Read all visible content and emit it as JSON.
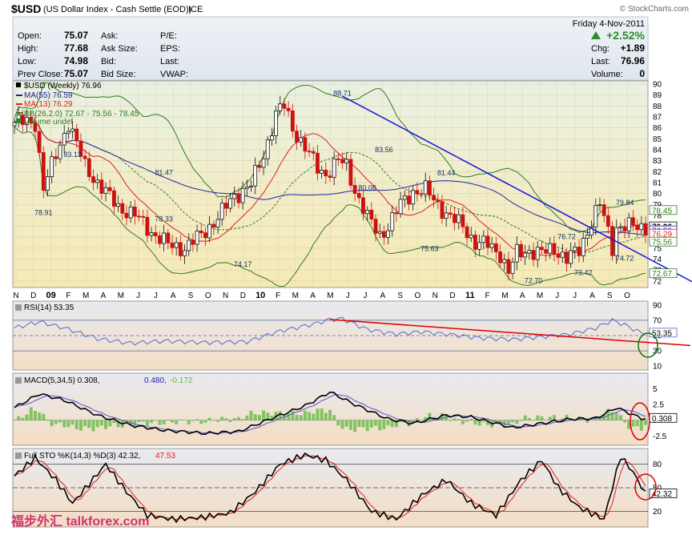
{
  "header": {
    "symbol": "$USD",
    "description": "(US Dollar Index - Cash Settle (EOD))",
    "exchange": "ICE",
    "brand": "© StockCharts.com",
    "date": "Friday 4-Nov-2011",
    "pct_change": "+2.52%",
    "watermark": "福步外汇 talkforex.com"
  },
  "quote": {
    "open_label": "Open:",
    "open": "75.07",
    "high_label": "High:",
    "high": "77.68",
    "low_label": "Low:",
    "low": "74.98",
    "prev_label": "Prev Close:",
    "prev": "75.07",
    "ask_label": "Ask:",
    "ask": "",
    "asksize_label": "Ask Size:",
    "asksize": "",
    "bid_label": "Bid:",
    "bid": "",
    "bidsize_label": "Bid Size:",
    "bidsize": "",
    "pe_label": "P/E:",
    "eps_label": "EPS:",
    "last_label": "Last:",
    "vwap_label": "VWAP:",
    "chg_label": "Chg:",
    "chg": "+1.89",
    "last2_label": "Last:",
    "last2": "76.96",
    "volume_label": "Volume:",
    "volume": "0"
  },
  "legend": {
    "main": "$USD (Weekly) 76.96",
    "ma55": "MA(55) 76.59",
    "ma13": "MA(13) 76.29",
    "bb": "BB(26,2.0) 72.67 - 75.56 - 78.45",
    "volume": "Volume undef",
    "rsi": "RSI(14) 53.35",
    "macd_a": "MACD(5,34,5) 0.308,",
    "macd_b": "0.480,",
    "macd_c": "-0.172",
    "sto_a": "Full STO %K(14,3) %D(3) 42.32,",
    "sto_b": "47.53"
  },
  "colors": {
    "price_bg": "#f4ecc0",
    "ind_bg": "#f5e6c8",
    "up": "#111111",
    "down": "#cc1111",
    "ma55": "#2222aa",
    "ma13": "#dd2222",
    "bb": "#2e7d1e",
    "trend": "#1111dd",
    "rsi": "#5566cc",
    "rsi_trend": "#dd0000",
    "macd_hist": "#66bb44"
  },
  "chart_data": [
    {
      "type": "candlestick",
      "title": "$USD (Weekly) 76.96",
      "x_labels": [
        "N",
        "D",
        "09",
        "F",
        "M",
        "A",
        "M",
        "J",
        "J",
        "A",
        "S",
        "O",
        "N",
        "D",
        "10",
        "F",
        "M",
        "A",
        "M",
        "J",
        "J",
        "A",
        "S",
        "O",
        "N",
        "D",
        "11",
        "F",
        "M",
        "A",
        "M",
        "J",
        "J",
        "A",
        "S",
        "O"
      ],
      "y_ticks": [
        72,
        73,
        74,
        75,
        76,
        77,
        78,
        79,
        80,
        81,
        82,
        83,
        84,
        85,
        86,
        87,
        88,
        89,
        90
      ],
      "ylim": [
        71.4,
        90.3
      ],
      "anchor_closes": [
        [
          0,
          86.5
        ],
        [
          5,
          86.5
        ],
        [
          7,
          80.5
        ],
        [
          13,
          86.5
        ],
        [
          17,
          82.5
        ],
        [
          21,
          80.5
        ],
        [
          25,
          78.8
        ],
        [
          29,
          78.0
        ],
        [
          33,
          76.5
        ],
        [
          37,
          75.3
        ],
        [
          41,
          75.0
        ],
        [
          45,
          76.2
        ],
        [
          49,
          77.8
        ],
        [
          53,
          79.8
        ],
        [
          57,
          80.8
        ],
        [
          60,
          83.5
        ],
        [
          63,
          87.3
        ],
        [
          65,
          88.0
        ],
        [
          67,
          86.0
        ],
        [
          70,
          84.2
        ],
        [
          73,
          82.3
        ],
        [
          75,
          81.8
        ],
        [
          78,
          83.0
        ],
        [
          80,
          82.5
        ],
        [
          82,
          80.3
        ],
        [
          85,
          77.8
        ],
        [
          88,
          76.2
        ],
        [
          90,
          77.0
        ],
        [
          93,
          79.0
        ],
        [
          96,
          80.2
        ],
        [
          99,
          80.3
        ],
        [
          102,
          79.0
        ],
        [
          105,
          77.8
        ],
        [
          108,
          77.0
        ],
        [
          111,
          75.5
        ],
        [
          114,
          75.3
        ],
        [
          117,
          74.5
        ],
        [
          119,
          72.8
        ],
        [
          121,
          74.5
        ],
        [
          124,
          74.8
        ],
        [
          127,
          74.5
        ],
        [
          130,
          75.0
        ],
        [
          133,
          74.0
        ],
        [
          136,
          74.8
        ],
        [
          139,
          77.5
        ],
        [
          141,
          79.0
        ],
        [
          143,
          76.5
        ],
        [
          144,
          75.1
        ],
        [
          145,
          76.96
        ]
      ],
      "annotations": [
        {
          "text": "83.13",
          "x": 14,
          "y": 83.13
        },
        {
          "text": "78.91",
          "x": 7,
          "y": 78.91
        },
        {
          "text": "81.47",
          "x": 36,
          "y": 81.47
        },
        {
          "text": "78.33",
          "x": 36,
          "y": 78.33
        },
        {
          "text": "74.17",
          "x": 55,
          "y": 74.17
        },
        {
          "text": "88.71",
          "x": 79,
          "y": 88.71
        },
        {
          "text": "83.56",
          "x": 89,
          "y": 83.56
        },
        {
          "text": "80.08",
          "x": 85,
          "y": 80.08
        },
        {
          "text": "81.44",
          "x": 104,
          "y": 81.44
        },
        {
          "text": "75.63",
          "x": 100,
          "y": 75.63
        },
        {
          "text": "76.72",
          "x": 133,
          "y": 76.72
        },
        {
          "text": "73.42",
          "x": 137,
          "y": 73.42
        },
        {
          "text": "72.70",
          "x": 125,
          "y": 72.7
        },
        {
          "text": "79.84",
          "x": 147,
          "y": 79.84
        },
        {
          "text": "74.72",
          "x": 147,
          "y": 74.72
        }
      ],
      "series": [
        {
          "name": "MA(55)",
          "last": 76.59
        },
        {
          "name": "MA(13)",
          "last": 76.29
        },
        {
          "name": "BB(26,2.0)",
          "lower": 72.67,
          "mid": 75.56,
          "upper": 78.45
        }
      ],
      "right_labels": [
        "78.45",
        "76.96",
        "76.59",
        "76.29",
        "75.56",
        "72.67"
      ],
      "trendline": {
        "from": [
          79,
          88.9
        ],
        "to": [
          158,
          72.4
        ]
      }
    },
    {
      "type": "line",
      "title": "RSI(14) 53.35",
      "y_ticks": [
        10,
        30,
        50,
        70,
        90
      ],
      "ylim": [
        5,
        95
      ],
      "reference_lines": [
        30,
        50,
        70
      ],
      "anchors": [
        [
          0,
          60
        ],
        [
          6,
          68
        ],
        [
          12,
          60
        ],
        [
          20,
          46
        ],
        [
          28,
          40
        ],
        [
          36,
          43
        ],
        [
          46,
          41
        ],
        [
          56,
          42
        ],
        [
          64,
          56
        ],
        [
          72,
          65
        ],
        [
          76,
          71
        ],
        [
          79,
          72
        ],
        [
          85,
          58
        ],
        [
          92,
          52
        ],
        [
          98,
          55
        ],
        [
          104,
          52
        ],
        [
          112,
          47
        ],
        [
          120,
          45
        ],
        [
          126,
          48
        ],
        [
          134,
          52
        ],
        [
          140,
          60
        ],
        [
          144,
          70
        ],
        [
          147,
          64
        ],
        [
          151,
          53.35
        ]
      ],
      "last": "53.35",
      "trendline": {
        "from": [
          76,
          71
        ],
        "to": [
          160,
          37
        ]
      }
    },
    {
      "type": "line",
      "title": "MACD(5,34,5)",
      "y_ticks": [
        -2.5,
        0,
        2.5,
        5
      ],
      "ylim": [
        -4,
        7.5
      ],
      "macd_anchors": [
        [
          0,
          2
        ],
        [
          6,
          4.2
        ],
        [
          12,
          3.2
        ],
        [
          20,
          0.8
        ],
        [
          28,
          -0.8
        ],
        [
          36,
          -1.6
        ],
        [
          46,
          -2.1
        ],
        [
          54,
          -1.8
        ],
        [
          62,
          0.3
        ],
        [
          70,
          2.3
        ],
        [
          76,
          4.5
        ],
        [
          82,
          2.5
        ],
        [
          90,
          0.2
        ],
        [
          96,
          -0.5
        ],
        [
          104,
          0.8
        ],
        [
          110,
          0.5
        ],
        [
          120,
          -1.2
        ],
        [
          126,
          -0.6
        ],
        [
          134,
          0.2
        ],
        [
          140,
          0.3
        ],
        [
          145,
          2.0
        ],
        [
          151,
          0.308
        ]
      ],
      "values": {
        "macd": 0.308,
        "signal": 0.48,
        "histogram": -0.172
      },
      "last": "0.308"
    },
    {
      "type": "line",
      "title": "Full STO %K(14,3) %D(3)",
      "y_ticks": [
        20,
        50,
        80
      ],
      "ylim": [
        0,
        100
      ],
      "reference_lines": [
        20,
        50,
        80
      ],
      "k_anchors": [
        [
          0,
          65
        ],
        [
          5,
          88
        ],
        [
          10,
          60
        ],
        [
          14,
          30
        ],
        [
          18,
          55
        ],
        [
          22,
          80
        ],
        [
          27,
          45
        ],
        [
          32,
          15
        ],
        [
          38,
          10
        ],
        [
          45,
          12
        ],
        [
          52,
          18
        ],
        [
          58,
          45
        ],
        [
          64,
          80
        ],
        [
          70,
          92
        ],
        [
          75,
          85
        ],
        [
          80,
          60
        ],
        [
          86,
          20
        ],
        [
          92,
          10
        ],
        [
          98,
          40
        ],
        [
          104,
          60
        ],
        [
          110,
          30
        ],
        [
          116,
          15
        ],
        [
          122,
          60
        ],
        [
          127,
          85
        ],
        [
          131,
          50
        ],
        [
          136,
          25
        ],
        [
          142,
          10
        ],
        [
          146,
          90
        ],
        [
          149,
          70
        ],
        [
          152,
          42.32
        ]
      ],
      "values": {
        "k": 42.32,
        "d": 47.53
      },
      "last": "42.32"
    }
  ]
}
